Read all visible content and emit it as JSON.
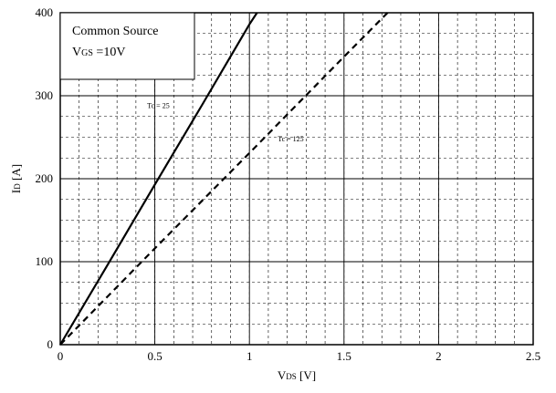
{
  "chart_data": {
    "type": "line",
    "legend": {
      "line1": "Common Source",
      "vgs_symbol": "V",
      "vgs_subscript": "GS",
      "vgs_value": " =10V"
    },
    "xlabel": {
      "symbol": "V",
      "subscript": "DS",
      "unit": " [V]"
    },
    "ylabel": {
      "symbol": "I",
      "subscript": "D",
      "unit": " [A]"
    },
    "xlim": [
      0,
      2.5
    ],
    "ylim": [
      0,
      400
    ],
    "x_ticks": [
      "0",
      "0.5",
      "1",
      "1.5",
      "2",
      "2.5"
    ],
    "y_ticks": [
      "0",
      "100",
      "200",
      "300",
      "400"
    ],
    "grid": true,
    "series": [
      {
        "name": "Tc = 25",
        "style": "solid",
        "x": [
          0,
          0.25,
          0.5,
          0.75,
          1.0,
          1.04
        ],
        "y": [
          0,
          96,
          193,
          289,
          386,
          400
        ]
      },
      {
        "name": "Tc = 125",
        "style": "dashed",
        "x": [
          0,
          0.5,
          1.0,
          1.5,
          1.73
        ],
        "y": [
          0,
          116,
          231,
          347,
          400
        ]
      }
    ]
  }
}
